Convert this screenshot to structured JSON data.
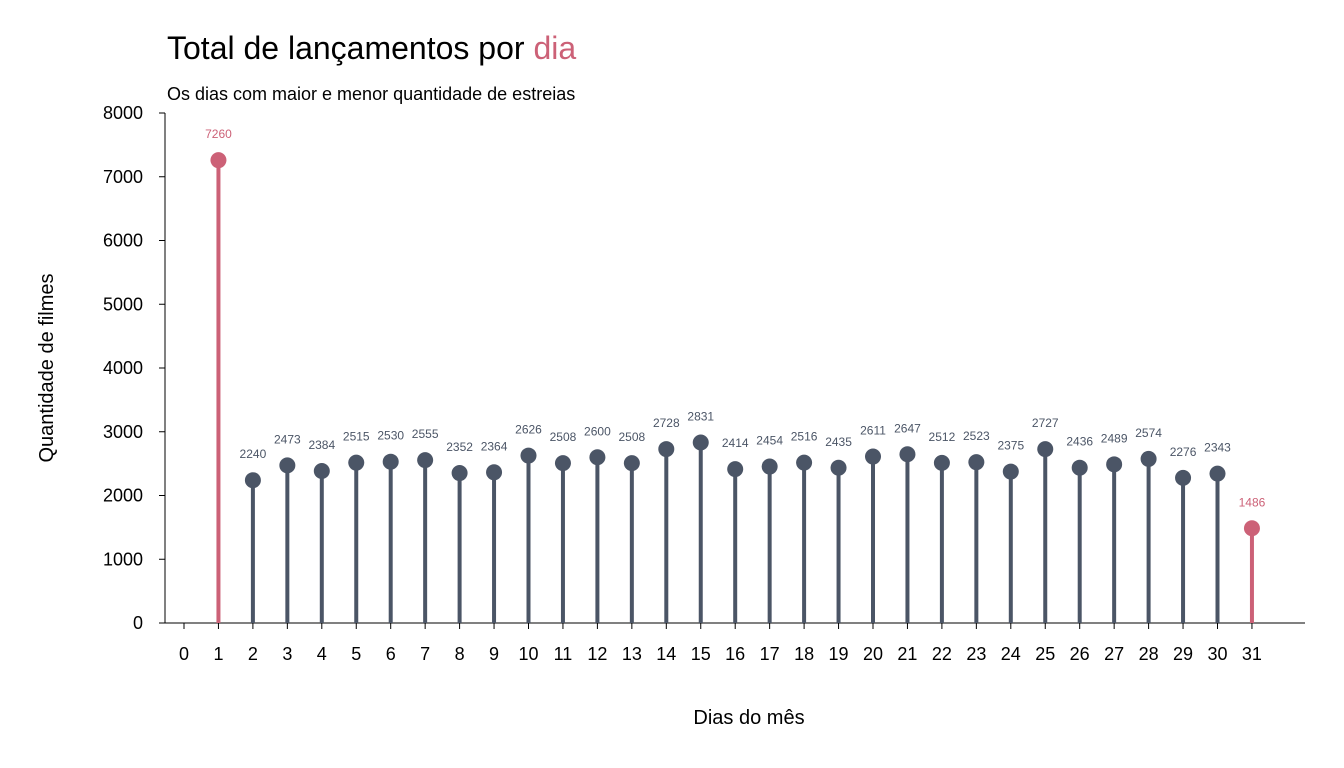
{
  "header": {
    "title_main": "Total de lançamentos por ",
    "title_highlight": "dia",
    "subtitle": "Os dias com maior e menor quantidade de estreias"
  },
  "colors": {
    "highlight": "#cc6177",
    "normal": "#4b5566",
    "normal_label": "#4b5566",
    "axis": "#000000"
  },
  "chart_data": {
    "type": "lollipop",
    "title": "Total de lançamentos por dia",
    "subtitle": "Os dias com maior e menor quantidade de estreias",
    "xlabel": "Dias do mês",
    "ylabel": "Quantidade de filmes",
    "xlim": [
      0,
      31
    ],
    "ylim": [
      0,
      8000
    ],
    "x_ticks": [
      0,
      1,
      2,
      3,
      4,
      5,
      6,
      7,
      8,
      9,
      10,
      11,
      12,
      13,
      14,
      15,
      16,
      17,
      18,
      19,
      20,
      21,
      22,
      23,
      24,
      25,
      26,
      27,
      28,
      29,
      30,
      31
    ],
    "y_ticks": [
      0,
      1000,
      2000,
      3000,
      4000,
      5000,
      6000,
      7000,
      8000
    ],
    "x": [
      1,
      2,
      3,
      4,
      5,
      6,
      7,
      8,
      9,
      10,
      11,
      12,
      13,
      14,
      15,
      16,
      17,
      18,
      19,
      20,
      21,
      22,
      23,
      24,
      25,
      26,
      27,
      28,
      29,
      30,
      31
    ],
    "values": [
      7260,
      2240,
      2473,
      2384,
      2515,
      2530,
      2555,
      2352,
      2364,
      2626,
      2508,
      2600,
      2508,
      2728,
      2831,
      2414,
      2454,
      2516,
      2435,
      2611,
      2647,
      2512,
      2523,
      2375,
      2727,
      2436,
      2489,
      2574,
      2276,
      2343,
      1486
    ],
    "highlighted_days": [
      1,
      31
    ],
    "grid": false,
    "legend": "none"
  }
}
